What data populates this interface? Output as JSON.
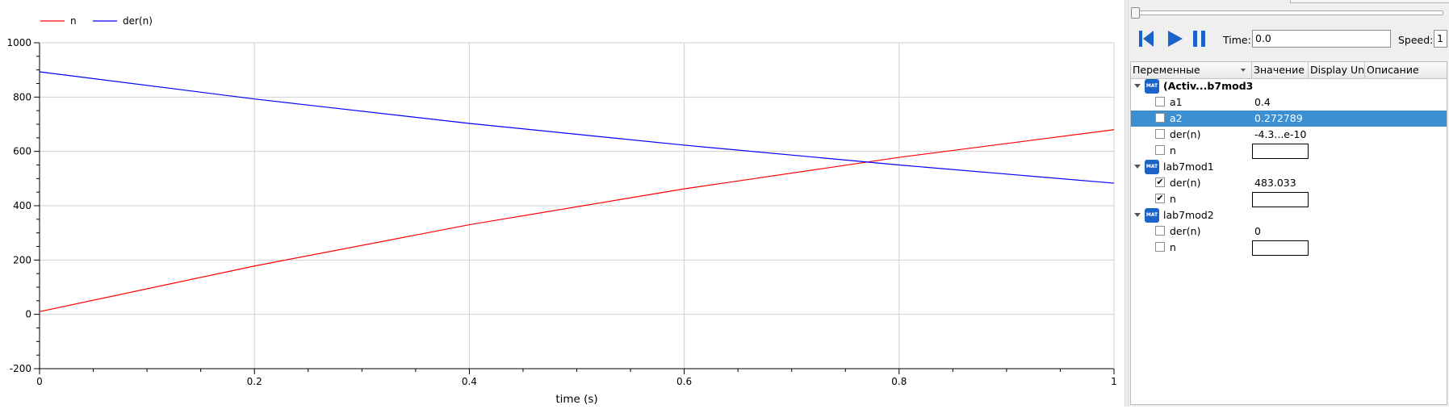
{
  "chart_data": {
    "type": "line",
    "xlabel": "time (s)",
    "ylabel": "",
    "xlim": [
      0,
      1
    ],
    "ylim": [
      -200,
      1000
    ],
    "xticks": [
      "0",
      "0.2",
      "0.4",
      "0.6",
      "0.8",
      "1"
    ],
    "yticks": [
      "-200",
      "0",
      "200",
      "400",
      "600",
      "800",
      "1000"
    ],
    "grid": true,
    "legend_position": "top-left",
    "series": [
      {
        "name": "n",
        "color": "#ff0000",
        "x": [
          0,
          0.2,
          0.4,
          0.6,
          0.8,
          1
        ],
        "y": [
          10,
          178,
          330,
          462,
          578,
          680
        ]
      },
      {
        "name": "der(n)",
        "color": "#0000ff",
        "x": [
          0,
          0.2,
          0.4,
          0.6,
          0.8,
          1
        ],
        "y": [
          893,
          793,
          703,
          623,
          550,
          483
        ]
      }
    ]
  },
  "controls": {
    "time_label": "Time:",
    "time_value": "0.0",
    "speed_label": "Speed:",
    "speed_value": "1"
  },
  "variables": {
    "headers": [
      "Переменные",
      "Значение",
      "Display Un",
      "Описание"
    ],
    "model_icon_text": "MAT",
    "groups": [
      {
        "name": "(Activ...b7mod3",
        "rows": [
          {
            "name": "a1",
            "value": "0.4",
            "checked": false
          },
          {
            "name": "a2",
            "value": "0.272789",
            "checked": false,
            "selected": true
          },
          {
            "name": "der(n)",
            "value": "-4.3...e-10",
            "checked": false
          },
          {
            "name": "n",
            "value": "",
            "checked": false,
            "boxed": true
          }
        ]
      },
      {
        "name": "lab7mod1",
        "rows": [
          {
            "name": "der(n)",
            "value": "483.033",
            "checked": true
          },
          {
            "name": "n",
            "value": "",
            "checked": true,
            "boxed": true
          }
        ]
      },
      {
        "name": "lab7mod2",
        "rows": [
          {
            "name": "der(n)",
            "value": "0",
            "checked": false
          },
          {
            "name": "n",
            "value": "",
            "checked": false,
            "boxed": true
          }
        ]
      }
    ]
  },
  "colors": {
    "selection": "#3c8fd1",
    "button": "#1c63c8"
  }
}
